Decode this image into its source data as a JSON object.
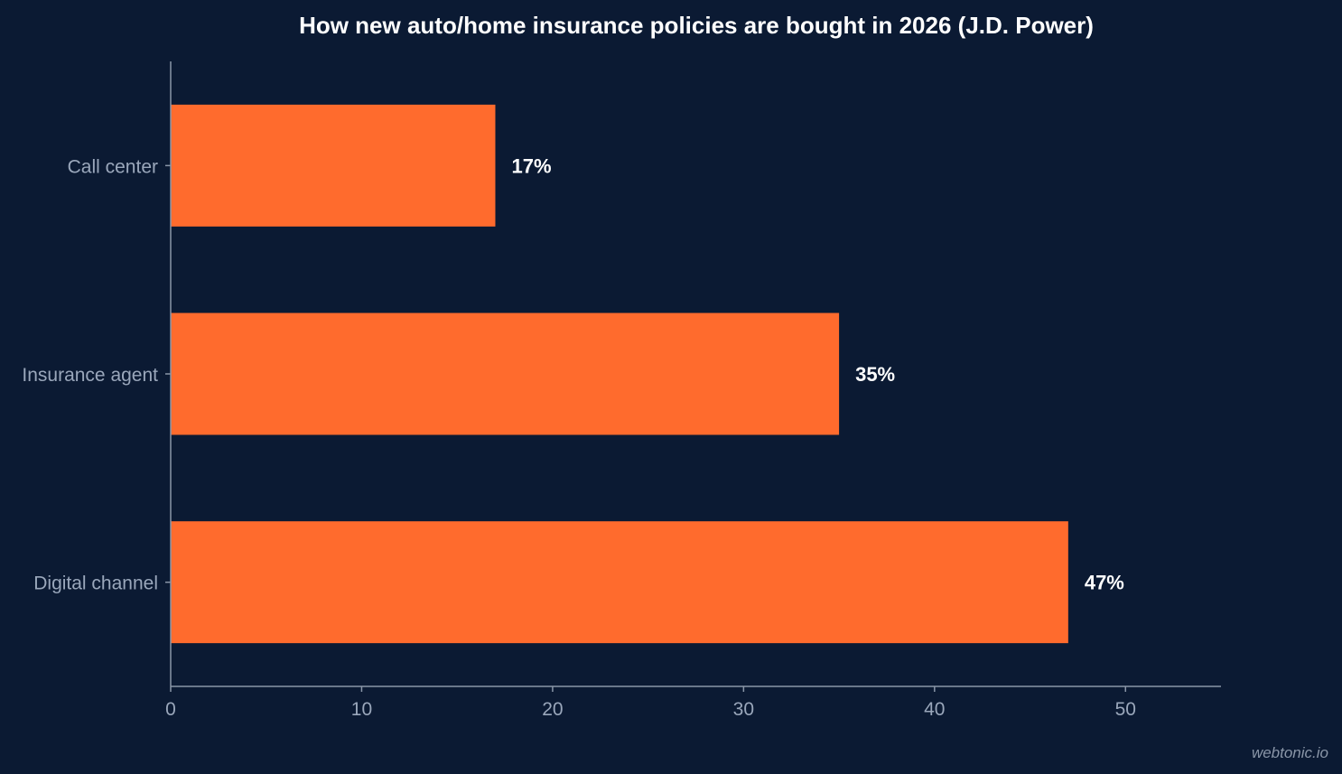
{
  "chart_data": {
    "type": "bar",
    "orientation": "horizontal",
    "title": "How new auto/home insurance policies are bought in 2026 (J.D. Power)",
    "categories": [
      "Call center",
      "Insurance agent",
      "Digital channel"
    ],
    "values": [
      17,
      35,
      47
    ],
    "value_labels": [
      "17%",
      "35%",
      "47%"
    ],
    "xlim": [
      0,
      55
    ],
    "x_ticks": [
      0,
      10,
      20,
      30,
      40,
      50
    ],
    "x_tick_labels": [
      "0",
      "10",
      "20",
      "30",
      "40",
      "50"
    ],
    "xlabel": "",
    "ylabel": "",
    "grid": false,
    "legend": "none",
    "bar_color": "#ff6b2d",
    "background_color": "#0b1a33"
  },
  "watermark": "webtonic.io"
}
